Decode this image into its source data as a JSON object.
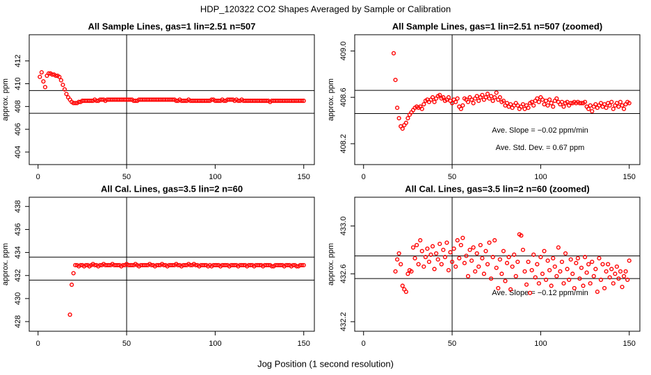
{
  "title": "HDP_120322  CO2 Shapes Averaged by Sample or Calibration",
  "xlabel": "Jog Position (1 second resolution)",
  "chart_data": [
    {
      "type": "scatter",
      "title": "All Sample Lines, gas=1 lin=2.51 n=507",
      "ylabel": "approx. ppm",
      "color": "#ff0000",
      "xlim": [
        -5,
        156
      ],
      "xticks": [
        0,
        50,
        100,
        150
      ],
      "ylim": [
        402.9,
        414.3
      ],
      "yticks": [
        404,
        406,
        408,
        410,
        412
      ],
      "hlines": [
        409.4,
        407.4
      ],
      "vlines": [
        50
      ],
      "x": [
        1,
        2,
        3,
        4,
        5,
        6,
        7,
        8,
        9,
        10,
        11,
        12,
        13,
        14,
        15,
        16,
        17,
        18,
        19,
        20,
        21,
        22,
        23,
        24,
        25,
        26,
        27,
        28,
        29,
        30,
        31,
        32,
        33,
        34,
        35,
        36,
        37,
        38,
        39,
        40,
        41,
        42,
        43,
        44,
        45,
        46,
        47,
        48,
        49,
        50,
        51,
        52,
        53,
        54,
        55,
        56,
        57,
        58,
        59,
        60,
        61,
        62,
        63,
        64,
        65,
        66,
        67,
        68,
        69,
        70,
        71,
        72,
        73,
        74,
        75,
        76,
        77,
        78,
        79,
        80,
        81,
        82,
        83,
        84,
        85,
        86,
        87,
        88,
        89,
        90,
        91,
        92,
        93,
        94,
        95,
        96,
        97,
        98,
        99,
        100,
        101,
        102,
        103,
        104,
        105,
        106,
        107,
        108,
        109,
        110,
        111,
        112,
        113,
        114,
        115,
        116,
        117,
        118,
        119,
        120,
        121,
        122,
        123,
        124,
        125,
        126,
        127,
        128,
        129,
        130,
        131,
        132,
        133,
        134,
        135,
        136,
        137,
        138,
        139,
        140,
        141,
        142,
        143,
        144,
        145,
        146,
        147,
        148,
        149,
        150
      ],
      "values": [
        410.6,
        411.0,
        410.2,
        409.7,
        410.7,
        410.9,
        410.9,
        410.8,
        410.8,
        410.7,
        410.7,
        410.6,
        410.3,
        409.9,
        409.5,
        409.1,
        408.8,
        408.6,
        408.4,
        408.3,
        408.3,
        408.3,
        408.4,
        408.4,
        408.5,
        408.5,
        408.5,
        408.5,
        408.5,
        408.5,
        408.5,
        408.6,
        408.5,
        408.5,
        408.6,
        408.6,
        408.6,
        408.5,
        408.6,
        408.6,
        408.6,
        408.6,
        408.6,
        408.6,
        408.6,
        408.6,
        408.6,
        408.6,
        408.6,
        408.6,
        408.6,
        408.6,
        408.6,
        408.5,
        408.5,
        408.5,
        408.6,
        408.6,
        408.6,
        408.6,
        408.6,
        408.6,
        408.6,
        408.6,
        408.6,
        408.6,
        408.6,
        408.6,
        408.6,
        408.6,
        408.6,
        408.6,
        408.6,
        408.6,
        408.6,
        408.6,
        408.6,
        408.5,
        408.5,
        408.6,
        408.5,
        408.5,
        408.5,
        408.5,
        408.6,
        408.5,
        408.5,
        408.5,
        408.5,
        408.5,
        408.5,
        408.5,
        408.5,
        408.5,
        408.5,
        408.5,
        408.5,
        408.6,
        408.6,
        408.5,
        408.5,
        408.5,
        408.5,
        408.6,
        408.5,
        408.5,
        408.6,
        408.6,
        408.6,
        408.6,
        408.5,
        408.6,
        408.5,
        408.5,
        408.6,
        408.5,
        408.5,
        408.5,
        408.5,
        408.5,
        408.5,
        408.5,
        408.5,
        408.5,
        408.5,
        408.5,
        408.5,
        408.5,
        408.5,
        408.5,
        408.4,
        408.5,
        408.5,
        408.5,
        408.5,
        408.5,
        408.5,
        408.5,
        408.5,
        408.5,
        408.5,
        408.5,
        408.5,
        408.5,
        408.5,
        408.5,
        408.5,
        408.5,
        408.5,
        408.5
      ]
    },
    {
      "type": "scatter",
      "title": "All Sample Lines, gas=1 lin=2.51 n=507 (zoomed)",
      "ylabel": "approx. ppm",
      "color": "#ff0000",
      "xlim": [
        -5,
        156
      ],
      "xticks": [
        0,
        50,
        100,
        150
      ],
      "ylim": [
        408.02,
        409.14
      ],
      "yticks": [
        408.2,
        408.6,
        {
          "value": 409,
          "label": "409.0"
        }
      ],
      "hlines": [
        408.66,
        408.46
      ],
      "vlines": [
        50
      ],
      "annotations": [
        "Ave. Slope =  −0.02  ppm/min",
        "Ave. Std. Dev. =  0.67  ppm"
      ],
      "x": [
        17,
        18,
        19,
        20,
        21,
        22,
        23,
        24,
        25,
        26,
        27,
        28,
        29,
        30,
        31,
        32,
        33,
        34,
        35,
        36,
        37,
        38,
        39,
        40,
        41,
        42,
        43,
        44,
        45,
        46,
        47,
        48,
        49,
        50,
        51,
        52,
        53,
        54,
        55,
        56,
        57,
        58,
        59,
        60,
        61,
        62,
        63,
        64,
        65,
        66,
        67,
        68,
        69,
        70,
        71,
        72,
        73,
        74,
        75,
        76,
        77,
        78,
        79,
        80,
        81,
        82,
        83,
        84,
        85,
        86,
        87,
        88,
        89,
        90,
        91,
        92,
        93,
        94,
        95,
        96,
        97,
        98,
        99,
        100,
        101,
        102,
        103,
        104,
        105,
        106,
        107,
        108,
        109,
        110,
        111,
        112,
        113,
        114,
        115,
        116,
        117,
        118,
        119,
        120,
        121,
        122,
        123,
        124,
        125,
        126,
        127,
        128,
        129,
        130,
        131,
        132,
        133,
        134,
        135,
        136,
        137,
        138,
        139,
        140,
        141,
        142,
        143,
        144,
        145,
        146,
        147,
        148,
        149,
        150
      ],
      "values": [
        408.98,
        408.75,
        408.51,
        408.42,
        408.35,
        408.33,
        408.36,
        408.38,
        408.42,
        408.45,
        408.47,
        408.49,
        408.51,
        408.52,
        408.51,
        408.52,
        408.5,
        408.54,
        408.57,
        408.58,
        408.56,
        408.58,
        408.6,
        408.56,
        408.59,
        408.61,
        408.62,
        408.59,
        408.6,
        408.57,
        408.58,
        408.6,
        408.57,
        408.55,
        408.58,
        408.56,
        408.59,
        408.52,
        408.5,
        408.53,
        408.59,
        408.58,
        408.56,
        408.6,
        408.58,
        408.55,
        408.59,
        408.61,
        408.57,
        408.6,
        408.62,
        408.58,
        408.6,
        408.63,
        408.59,
        408.61,
        408.57,
        408.6,
        408.64,
        408.58,
        408.6,
        408.56,
        408.57,
        408.53,
        408.55,
        408.52,
        408.54,
        408.51,
        408.53,
        408.55,
        408.53,
        408.5,
        408.52,
        408.54,
        408.5,
        408.53,
        408.51,
        408.55,
        408.56,
        408.53,
        408.57,
        408.59,
        408.56,
        408.6,
        408.58,
        408.54,
        408.57,
        408.53,
        408.58,
        408.55,
        408.52,
        408.57,
        408.59,
        408.56,
        408.54,
        408.56,
        408.52,
        408.55,
        408.56,
        408.53,
        408.55,
        408.55,
        408.56,
        408.55,
        408.56,
        408.55,
        408.55,
        408.55,
        408.56,
        408.52,
        408.5,
        408.53,
        408.48,
        408.52,
        408.54,
        408.51,
        408.53,
        408.55,
        408.52,
        408.54,
        408.51,
        408.55,
        408.53,
        408.56,
        408.5,
        408.53,
        408.55,
        408.52,
        408.56,
        408.53,
        408.5,
        408.54,
        408.56,
        408.55
      ]
    },
    {
      "type": "scatter",
      "title": "All Cal. Lines, gas=3.5 lin=2 n=60",
      "ylabel": "approx. ppm",
      "color": "#ff0000",
      "xlim": [
        -5,
        156
      ],
      "xticks": [
        0,
        50,
        100,
        150
      ],
      "ylim": [
        427.16,
        438.8
      ],
      "yticks": [
        428,
        430,
        432,
        434,
        436,
        438
      ],
      "hlines": [
        433.6,
        431.6
      ],
      "vlines": [
        50
      ],
      "x": [
        18,
        19,
        20,
        21,
        22,
        23,
        24,
        25,
        26,
        27,
        28,
        29,
        30,
        31,
        32,
        33,
        34,
        35,
        36,
        37,
        38,
        39,
        40,
        41,
        42,
        43,
        44,
        45,
        46,
        47,
        48,
        49,
        50,
        51,
        52,
        53,
        54,
        55,
        56,
        57,
        58,
        59,
        60,
        61,
        62,
        63,
        64,
        65,
        66,
        67,
        68,
        69,
        70,
        71,
        72,
        73,
        74,
        75,
        76,
        77,
        78,
        79,
        80,
        81,
        82,
        83,
        84,
        85,
        86,
        87,
        88,
        89,
        90,
        91,
        92,
        93,
        94,
        95,
        96,
        97,
        98,
        99,
        100,
        101,
        102,
        103,
        104,
        105,
        106,
        107,
        108,
        109,
        110,
        111,
        112,
        113,
        114,
        115,
        116,
        117,
        118,
        119,
        120,
        121,
        122,
        123,
        124,
        125,
        126,
        127,
        128,
        129,
        130,
        131,
        132,
        133,
        134,
        135,
        136,
        137,
        138,
        139,
        140,
        141,
        142,
        143,
        144,
        145,
        146,
        147,
        148,
        149,
        150
      ],
      "values": [
        428.6,
        431.2,
        432.2,
        432.9,
        432.9,
        432.8,
        432.9,
        432.9,
        432.8,
        432.9,
        432.9,
        432.8,
        432.9,
        433.0,
        432.9,
        432.9,
        432.8,
        432.9,
        432.9,
        433.0,
        432.9,
        432.9,
        432.9,
        432.9,
        433.0,
        432.9,
        432.9,
        432.9,
        432.9,
        432.8,
        432.9,
        432.9,
        433.0,
        432.9,
        432.9,
        432.9,
        432.9,
        433.0,
        432.9,
        432.8,
        432.9,
        432.9,
        432.9,
        432.9,
        432.9,
        433.0,
        432.9,
        432.9,
        432.8,
        432.9,
        432.9,
        432.9,
        433.0,
        432.9,
        432.9,
        432.8,
        432.9,
        432.9,
        432.9,
        432.9,
        433.0,
        432.9,
        432.9,
        432.8,
        432.9,
        432.9,
        432.9,
        433.0,
        432.9,
        432.9,
        433.0,
        432.9,
        432.9,
        432.8,
        432.9,
        432.9,
        432.9,
        432.9,
        432.8,
        432.9,
        432.8,
        432.9,
        432.9,
        432.9,
        432.9,
        432.8,
        432.9,
        432.9,
        432.9,
        432.9,
        432.8,
        432.9,
        432.9,
        432.9,
        432.9,
        432.8,
        432.9,
        432.9,
        432.9,
        432.9,
        432.8,
        432.9,
        432.9,
        432.9,
        432.8,
        432.9,
        432.9,
        432.9,
        432.9,
        432.8,
        432.9,
        432.9,
        432.9,
        432.9,
        432.8,
        432.8,
        432.9,
        432.9,
        432.9,
        432.9,
        432.9,
        432.8,
        432.9,
        432.9,
        432.9,
        432.8,
        432.9,
        432.9,
        432.8,
        432.8,
        432.9,
        432.9,
        432.9
      ]
    },
    {
      "type": "scatter",
      "title": "All Cal. Lines, gas=3.5 lin=2 n=60 (zoomed)",
      "ylabel": "approx. ppm",
      "color": "#ff0000",
      "xlim": [
        -5,
        156
      ],
      "xticks": [
        0,
        50,
        100,
        150
      ],
      "ylim": [
        432.12,
        433.24
      ],
      "yticks": [
        432.2,
        432.6,
        {
          "value": 433,
          "label": "433.0"
        }
      ],
      "hlines": [
        432.75,
        432.56
      ],
      "vlines": [
        50
      ],
      "annotations": [
        "Ave. Slope =  −0.12  ppm/min"
      ],
      "x": [
        18,
        19,
        20,
        21,
        22,
        23,
        24,
        25,
        26,
        27,
        28,
        29,
        30,
        31,
        32,
        33,
        34,
        35,
        36,
        37,
        38,
        39,
        40,
        41,
        42,
        43,
        44,
        45,
        46,
        47,
        48,
        49,
        50,
        51,
        52,
        53,
        54,
        55,
        56,
        57,
        58,
        59,
        60,
        61,
        62,
        63,
        64,
        65,
        66,
        67,
        68,
        69,
        70,
        71,
        72,
        73,
        74,
        75,
        76,
        77,
        78,
        79,
        80,
        81,
        82,
        83,
        84,
        85,
        86,
        87,
        88,
        89,
        90,
        91,
        92,
        93,
        94,
        95,
        96,
        97,
        98,
        99,
        100,
        101,
        102,
        103,
        104,
        105,
        106,
        107,
        108,
        109,
        110,
        111,
        112,
        113,
        114,
        115,
        116,
        117,
        118,
        119,
        120,
        121,
        122,
        123,
        124,
        125,
        126,
        127,
        128,
        129,
        130,
        131,
        132,
        133,
        134,
        135,
        136,
        137,
        138,
        139,
        140,
        141,
        142,
        143,
        144,
        145,
        146,
        147,
        148,
        149,
        150
      ],
      "values": [
        432.62,
        432.72,
        432.77,
        432.68,
        432.5,
        432.47,
        432.45,
        432.6,
        432.63,
        432.62,
        432.82,
        432.73,
        432.84,
        432.68,
        432.88,
        432.79,
        432.66,
        432.74,
        432.81,
        432.7,
        432.76,
        432.83,
        432.64,
        432.77,
        432.72,
        432.85,
        432.68,
        432.8,
        432.74,
        432.86,
        432.63,
        432.78,
        432.7,
        432.81,
        432.66,
        432.88,
        432.73,
        432.84,
        432.9,
        432.69,
        432.75,
        432.58,
        432.8,
        432.71,
        432.82,
        432.62,
        432.77,
        432.66,
        432.84,
        432.73,
        432.6,
        432.79,
        432.68,
        432.86,
        432.56,
        432.74,
        432.88,
        432.65,
        432.48,
        432.72,
        432.6,
        432.79,
        432.54,
        432.69,
        432.74,
        432.47,
        432.66,
        432.76,
        432.58,
        432.7,
        432.93,
        432.92,
        432.8,
        432.62,
        432.51,
        432.7,
        432.44,
        432.63,
        432.76,
        432.57,
        432.68,
        432.52,
        432.74,
        432.6,
        432.79,
        432.55,
        432.71,
        432.63,
        432.5,
        432.73,
        432.66,
        432.58,
        432.82,
        432.62,
        432.7,
        432.52,
        432.77,
        432.64,
        432.55,
        432.72,
        432.6,
        432.48,
        432.69,
        432.73,
        432.56,
        432.65,
        432.5,
        432.74,
        432.61,
        432.68,
        432.52,
        432.7,
        432.58,
        432.64,
        432.45,
        432.73,
        432.55,
        432.68,
        432.48,
        432.62,
        432.68,
        432.57,
        432.64,
        432.52,
        432.6,
        432.66,
        432.56,
        432.62,
        432.49,
        432.58,
        432.62,
        432.55,
        432.71
      ]
    }
  ]
}
